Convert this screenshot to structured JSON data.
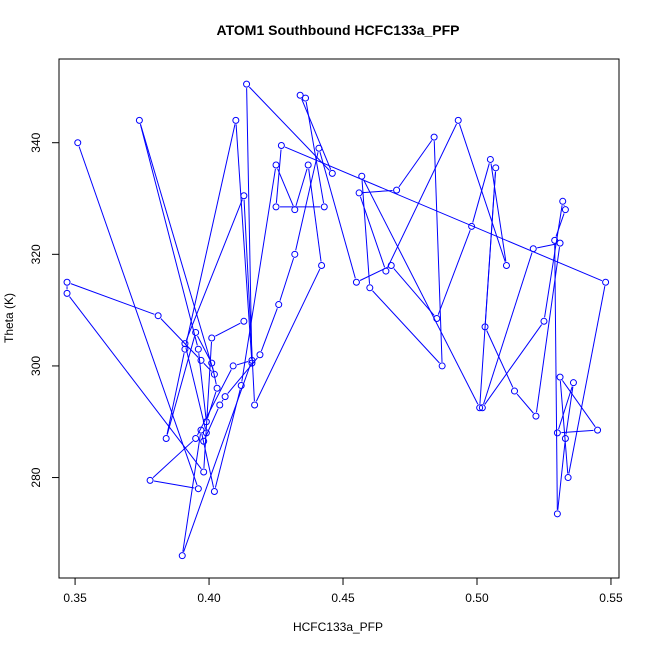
{
  "chart_data": {
    "type": "line",
    "title": "ATOM1 Southbound HCFC133a_PFP",
    "xlabel": "HCFC133a_PFP",
    "ylabel": "Theta (K)",
    "xlim": [
      0.344,
      0.553
    ],
    "ylim": [
      262,
      355
    ],
    "xticks": [
      0.35,
      0.4,
      0.45,
      0.5,
      0.55
    ],
    "xtick_labels": [
      "0.35",
      "0.40",
      "0.45",
      "0.50",
      "0.55"
    ],
    "yticks": [
      280,
      300,
      320,
      340
    ],
    "ytick_labels": [
      "280",
      "300",
      "320",
      "340"
    ],
    "grid": false,
    "legend": "none",
    "markers": "open-circle",
    "color": "#0000ff",
    "series": [
      {
        "x": [
          0.351,
          0.396,
          0.378,
          0.395,
          0.409,
          0.416,
          0.39,
          0.397,
          0.402,
          0.412,
          0.425,
          0.432,
          0.437,
          0.442,
          0.417,
          0.413,
          0.391,
          0.399,
          0.398,
          0.404,
          0.406,
          0.419,
          0.426,
          0.432,
          0.441,
          0.455,
          0.468,
          0.485,
          0.498,
          0.505,
          0.511,
          0.493,
          0.466,
          0.456,
          0.47,
          0.484,
          0.487,
          0.46,
          0.457,
          0.501,
          0.507,
          0.503,
          0.514,
          0.522,
          0.531,
          0.521,
          0.502,
          0.525,
          0.532,
          0.533,
          0.529,
          0.53,
          0.533,
          0.536,
          0.53,
          0.545,
          0.531,
          0.534,
          0.548,
          0.427,
          0.425,
          0.443,
          0.436,
          0.434,
          0.446,
          0.414,
          0.416,
          0.41,
          0.391,
          0.384,
          0.395,
          0.401,
          0.403,
          0.399,
          0.396,
          0.374,
          0.402,
          0.397,
          0.381,
          0.347,
          0.347,
          0.398,
          0.401,
          0.413
        ],
        "y": [
          340,
          278,
          279.5,
          287,
          300,
          301,
          266,
          288.5,
          277.5,
          296.5,
          336,
          328,
          336,
          318,
          293,
          330.5,
          304,
          288,
          286.5,
          293,
          294.5,
          302,
          311,
          320,
          339,
          315,
          318,
          308.5,
          325,
          337,
          318,
          344,
          317,
          331,
          331.5,
          341,
          300,
          314,
          334,
          292.5,
          335.5,
          307,
          295.5,
          291,
          322,
          321,
          292.5,
          308,
          329.5,
          328,
          322.5,
          273.5,
          287,
          297,
          288,
          288.5,
          298,
          280,
          315,
          339.5,
          328.5,
          328.5,
          348,
          348.5,
          334.5,
          350.5,
          300.5,
          344,
          303,
          287,
          306,
          300.5,
          296,
          290,
          303,
          344,
          298.5,
          301,
          309,
          315,
          313,
          281,
          305,
          308
        ]
      }
    ]
  }
}
